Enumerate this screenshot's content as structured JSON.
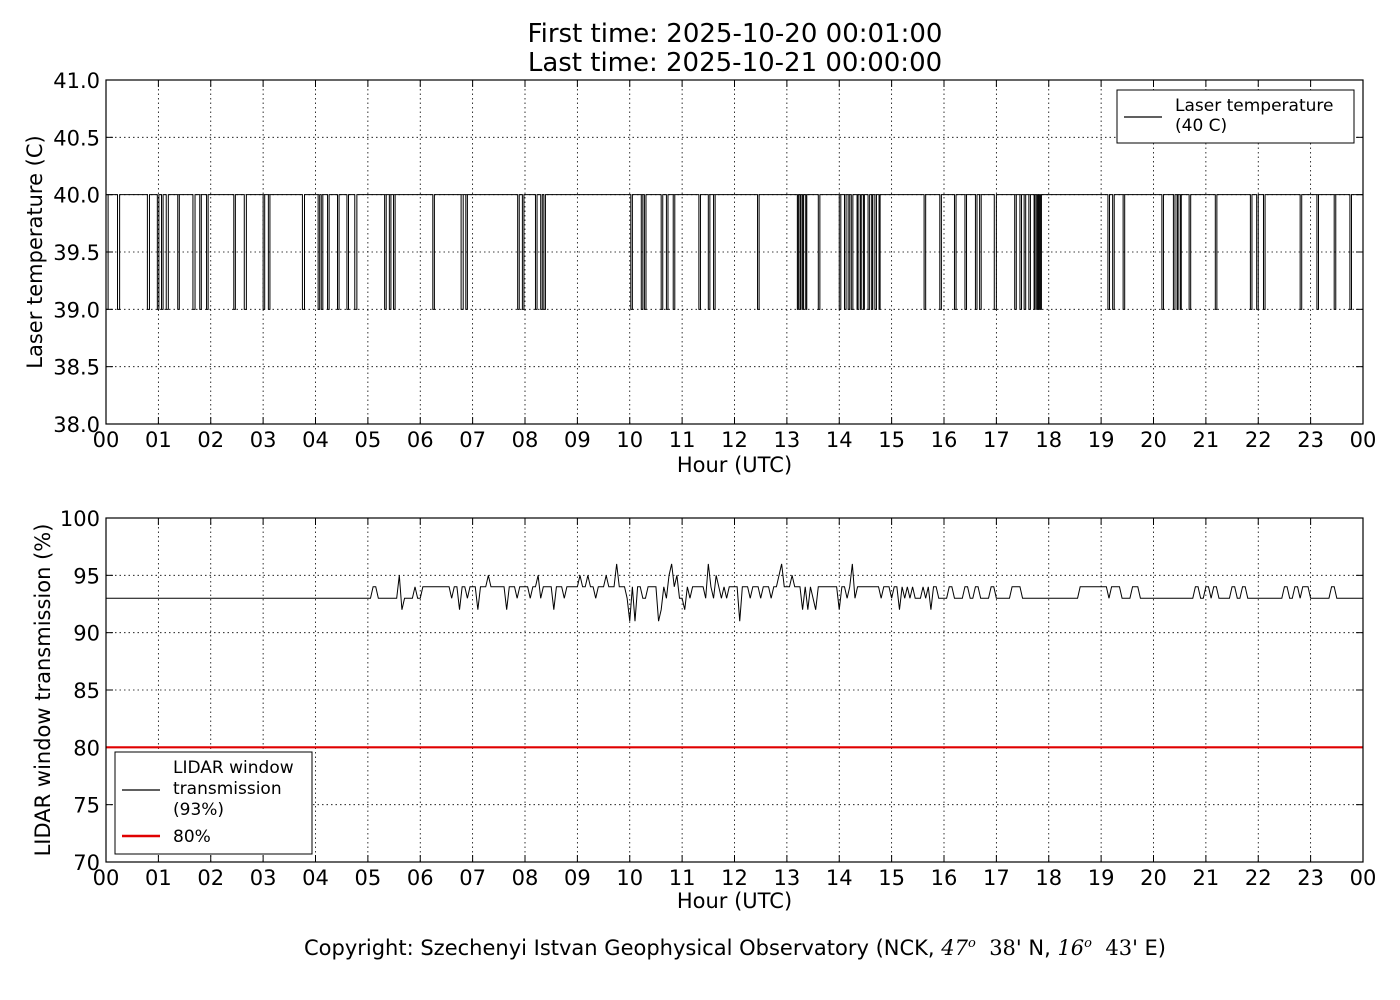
{
  "title": {
    "line1": "First time: 2025-10-20 00:01:00",
    "line2": "Last time: 2025-10-21 00:00:00"
  },
  "copyright": {
    "prefix": "Copyright: Szechenyi Istvan Geophysical Observatory (NCK, ",
    "lat_deg": "47",
    "lat_min": "38",
    "lat_suffix": "' N, ",
    "lon_deg": "16",
    "lon_min": "43",
    "lon_suffix": "' E)",
    "degree_mark": "o"
  },
  "chart_data": [
    {
      "type": "line",
      "title": "",
      "xlabel": "Hour (UTC)",
      "ylabel": "Laser temperature (C)",
      "xlim": [
        0,
        24
      ],
      "ylim": [
        38.0,
        41.0
      ],
      "x_ticks": [
        "00",
        "01",
        "02",
        "03",
        "04",
        "05",
        "06",
        "07",
        "08",
        "09",
        "10",
        "11",
        "12",
        "13",
        "14",
        "15",
        "16",
        "17",
        "18",
        "19",
        "20",
        "21",
        "22",
        "23",
        "00"
      ],
      "y_ticks": [
        "38.0",
        "38.5",
        "39.0",
        "39.5",
        "40.0",
        "40.5",
        "41.0"
      ],
      "grid": true,
      "legend": {
        "placement": "top-right",
        "lines": [
          "Laser temperature",
          "(40 C)"
        ]
      },
      "series": [
        {
          "name": "Laser temperature (40 C)",
          "color": "#000000",
          "baseline": 40.0,
          "dip_value": 39.0,
          "dips": [
            [
              0.0,
              0.04
            ],
            [
              0.22,
              0.26
            ],
            [
              0.79,
              0.83
            ],
            [
              0.98,
              1.01
            ],
            [
              1.06,
              1.09
            ],
            [
              1.15,
              1.19
            ],
            [
              1.37,
              1.4
            ],
            [
              1.66,
              1.7
            ],
            [
              1.79,
              1.82
            ],
            [
              1.92,
              1.95
            ],
            [
              2.44,
              2.47
            ],
            [
              2.64,
              2.68
            ],
            [
              3.0,
              3.03
            ],
            [
              3.1,
              3.13
            ],
            [
              3.75,
              3.79
            ],
            [
              4.05,
              4.08
            ],
            [
              4.11,
              4.14
            ],
            [
              4.23,
              4.26
            ],
            [
              4.42,
              4.45
            ],
            [
              4.6,
              4.63
            ],
            [
              4.75,
              4.79
            ],
            [
              5.32,
              5.35
            ],
            [
              5.41,
              5.44
            ],
            [
              5.49,
              5.52
            ],
            [
              6.24,
              6.27
            ],
            [
              6.78,
              6.82
            ],
            [
              6.87,
              6.9
            ],
            [
              7.86,
              7.89
            ],
            [
              7.95,
              7.98
            ],
            [
              8.2,
              8.23
            ],
            [
              8.3,
              8.33
            ],
            [
              8.36,
              8.39
            ],
            [
              10.02,
              10.05
            ],
            [
              10.22,
              10.25
            ],
            [
              10.28,
              10.31
            ],
            [
              10.6,
              10.63
            ],
            [
              10.7,
              10.73
            ],
            [
              10.83,
              10.86
            ],
            [
              11.32,
              11.35
            ],
            [
              11.5,
              11.53
            ],
            [
              11.6,
              11.63
            ],
            [
              12.44,
              12.47
            ],
            [
              13.2,
              13.22
            ],
            [
              13.25,
              13.27
            ],
            [
              13.3,
              13.32
            ],
            [
              13.36,
              13.38
            ],
            [
              13.6,
              13.63
            ],
            [
              14.0,
              14.03
            ],
            [
              14.1,
              14.13
            ],
            [
              14.17,
              14.2
            ],
            [
              14.23,
              14.26
            ],
            [
              14.34,
              14.36
            ],
            [
              14.4,
              14.42
            ],
            [
              14.46,
              14.48
            ],
            [
              14.55,
              14.58
            ],
            [
              14.62,
              14.64
            ],
            [
              14.68,
              14.71
            ],
            [
              14.76,
              14.78
            ],
            [
              15.62,
              15.65
            ],
            [
              15.92,
              15.95
            ],
            [
              16.2,
              16.23
            ],
            [
              16.4,
              16.43
            ],
            [
              16.6,
              16.63
            ],
            [
              16.68,
              16.71
            ],
            [
              16.96,
              17.0
            ],
            [
              17.35,
              17.38
            ],
            [
              17.45,
              17.48
            ],
            [
              17.53,
              17.56
            ],
            [
              17.62,
              17.65
            ],
            [
              17.72,
              17.74
            ],
            [
              17.77,
              17.79
            ],
            [
              17.8,
              17.82
            ],
            [
              17.84,
              17.86
            ],
            [
              19.13,
              19.16
            ],
            [
              19.22,
              19.25
            ],
            [
              19.42,
              19.45
            ],
            [
              20.16,
              20.19
            ],
            [
              20.38,
              20.41
            ],
            [
              20.45,
              20.47
            ],
            [
              20.51,
              20.53
            ],
            [
              20.68,
              20.71
            ],
            [
              21.18,
              21.21
            ],
            [
              21.85,
              21.88
            ],
            [
              21.97,
              22.0
            ],
            [
              22.1,
              22.13
            ],
            [
              22.8,
              22.83
            ],
            [
              23.12,
              23.15
            ],
            [
              23.45,
              23.48
            ],
            [
              23.75,
              23.78
            ]
          ]
        }
      ]
    },
    {
      "type": "line",
      "title": "",
      "xlabel": "Hour (UTC)",
      "ylabel": "LIDAR window transmission (%)",
      "xlim": [
        0,
        24
      ],
      "ylim": [
        70,
        100
      ],
      "x_ticks": [
        "00",
        "01",
        "02",
        "03",
        "04",
        "05",
        "06",
        "07",
        "08",
        "09",
        "10",
        "11",
        "12",
        "13",
        "14",
        "15",
        "16",
        "17",
        "18",
        "19",
        "20",
        "21",
        "22",
        "23",
        "00"
      ],
      "y_ticks": [
        "70",
        "75",
        "80",
        "85",
        "90",
        "95",
        "100"
      ],
      "grid": true,
      "legend": {
        "placement": "bottom-left",
        "lines": [
          "LIDAR window",
          "transmission",
          "(93%)",
          "80%"
        ]
      },
      "series": [
        {
          "name": "LIDAR window transmission (93%)",
          "color": "#000000",
          "baseline": 93,
          "noisy_segments": [
            [
              5.0,
              6.0,
              0.3
            ],
            [
              6.0,
              15.2,
              0.95
            ],
            [
              15.2,
              16.0,
              0.45
            ]
          ],
          "spikes": [
            [
              16.12,
              94
            ],
            [
              16.42,
              94
            ],
            [
              16.62,
              94
            ],
            [
              16.92,
              94
            ],
            [
              17.32,
              94
            ],
            [
              17.38,
              94
            ],
            [
              18.6,
              94
            ],
            [
              18.66,
              94
            ],
            [
              18.72,
              94
            ],
            [
              18.78,
              94
            ],
            [
              18.85,
              94
            ],
            [
              18.93,
              94
            ],
            [
              19.05,
              94
            ],
            [
              19.18,
              94
            ],
            [
              19.3,
              94
            ],
            [
              19.6,
              94
            ],
            [
              19.66,
              94
            ],
            [
              20.8,
              94
            ],
            [
              21.02,
              94
            ],
            [
              21.15,
              94
            ],
            [
              21.48,
              94
            ],
            [
              21.72,
              94
            ],
            [
              22.48,
              94
            ],
            [
              22.72,
              94
            ],
            [
              22.84,
              94
            ],
            [
              22.92,
              94
            ],
            [
              23.4,
              94
            ]
          ],
          "notable_points": [
            [
              9.75,
              96
            ],
            [
              10.0,
              91
            ],
            [
              10.12,
              91
            ],
            [
              10.55,
              91
            ],
            [
              10.82,
              96
            ],
            [
              11.5,
              96
            ],
            [
              12.08,
              91
            ],
            [
              12.88,
              96
            ],
            [
              14.25,
              96
            ]
          ]
        },
        {
          "name": "80%",
          "color": "#e00000",
          "values": [
            80,
            80
          ]
        }
      ]
    }
  ]
}
